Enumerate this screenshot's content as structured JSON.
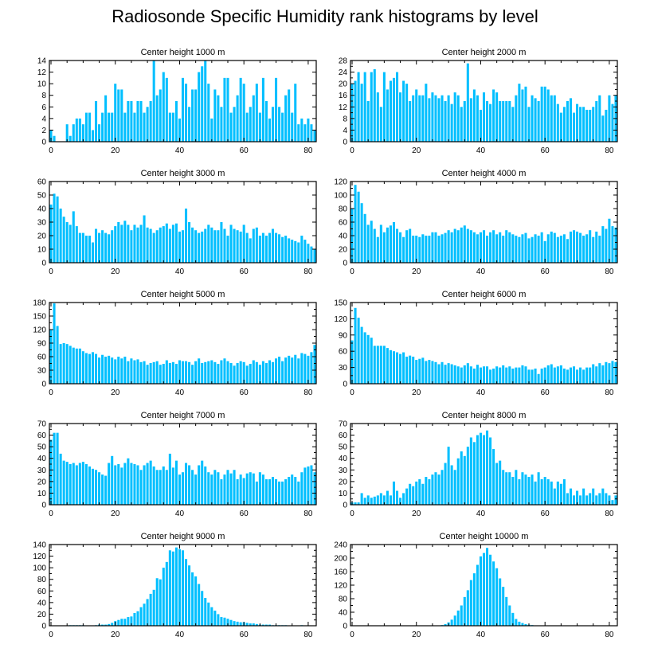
{
  "title": "Radiosonde Specific Humidity rank histograms by level",
  "bar_color": "#00bfff",
  "chart_data": [
    {
      "type": "bar",
      "title": "Center height 1000 m",
      "xlim": [
        -0.5,
        82.5
      ],
      "ylim": [
        0,
        14
      ],
      "yticks": [
        0,
        2,
        4,
        6,
        8,
        10,
        12,
        14
      ],
      "xticks": [
        0,
        20,
        40,
        60,
        80
      ],
      "values": [
        2,
        1,
        0,
        0,
        0,
        3,
        1,
        3,
        4,
        4,
        3,
        5,
        5,
        2,
        7,
        3,
        5,
        8,
        5,
        5,
        10,
        9,
        9,
        5,
        7,
        7,
        5,
        7,
        7,
        5,
        6,
        7,
        14,
        8,
        9,
        12,
        11,
        5,
        5,
        7,
        4,
        11,
        10,
        6,
        9,
        9,
        12,
        13,
        14,
        10,
        4,
        9,
        8,
        6,
        11,
        11,
        5,
        6,
        8,
        11,
        10,
        5,
        6,
        8,
        10,
        5,
        11,
        7,
        4,
        6,
        11,
        6,
        5,
        8,
        9,
        5,
        10,
        3,
        4,
        3,
        4,
        3,
        2
      ]
    },
    {
      "type": "bar",
      "title": "Center height 2000 m",
      "xlim": [
        -0.5,
        82.5
      ],
      "ylim": [
        0,
        28
      ],
      "yticks": [
        0,
        2,
        4,
        6,
        8,
        10,
        12,
        14,
        16,
        18,
        20,
        22,
        24,
        26,
        28
      ],
      "yticklabels": [
        0,
        4,
        8,
        12,
        16,
        20,
        24,
        28
      ],
      "xticks": [
        0,
        20,
        40,
        60,
        80
      ],
      "values": [
        20,
        21,
        24,
        20,
        24,
        14,
        24,
        25,
        17,
        12,
        24,
        18,
        21,
        22,
        24,
        17,
        21,
        20,
        14,
        16,
        18,
        16,
        16,
        20,
        15,
        17,
        16,
        15,
        16,
        14,
        16,
        13,
        17,
        16,
        12,
        14,
        27,
        15,
        18,
        16,
        11,
        17,
        14,
        13,
        18,
        17,
        14,
        14,
        14,
        14,
        12,
        16,
        20,
        18,
        19,
        12,
        16,
        15,
        14,
        19,
        19,
        18,
        16,
        16,
        13,
        10,
        12,
        14,
        15,
        10,
        13,
        12,
        12,
        11,
        11,
        12,
        14,
        16,
        9,
        11,
        16,
        13,
        16
      ]
    },
    {
      "type": "bar",
      "title": "Center height 3000 m",
      "xlim": [
        -0.5,
        82.5
      ],
      "ylim": [
        0,
        60
      ],
      "yticks": [
        0,
        10,
        20,
        30,
        40,
        50,
        60
      ],
      "xticks": [
        0,
        20,
        40,
        60,
        80
      ],
      "values": [
        43,
        51,
        49,
        40,
        34,
        30,
        28,
        38,
        27,
        22,
        22,
        20,
        20,
        15,
        25,
        22,
        24,
        22,
        21,
        24,
        27,
        30,
        28,
        31,
        28,
        24,
        28,
        26,
        28,
        35,
        26,
        25,
        22,
        24,
        26,
        27,
        29,
        25,
        28,
        29,
        23,
        24,
        40,
        30,
        26,
        24,
        22,
        23,
        25,
        28,
        26,
        24,
        24,
        30,
        25,
        20,
        28,
        25,
        24,
        23,
        28,
        22,
        18,
        25,
        26,
        20,
        22,
        20,
        22,
        25,
        22,
        21,
        19,
        20,
        18,
        17,
        16,
        15,
        20,
        17,
        14,
        12,
        10
      ]
    },
    {
      "type": "bar",
      "title": "Center height 4000 m",
      "xlim": [
        -0.5,
        82.5
      ],
      "ylim": [
        0,
        120
      ],
      "yticks": [
        0,
        10,
        20,
        30,
        40,
        50,
        60,
        70,
        80,
        90,
        100,
        110,
        120
      ],
      "yticklabels": [
        0,
        20,
        40,
        60,
        80,
        100,
        120
      ],
      "xticks": [
        0,
        20,
        40,
        60,
        80
      ],
      "values": [
        80,
        115,
        105,
        88,
        72,
        56,
        62,
        50,
        38,
        56,
        45,
        52,
        55,
        60,
        50,
        45,
        38,
        48,
        50,
        40,
        40,
        38,
        42,
        40,
        40,
        45,
        45,
        40,
        42,
        44,
        48,
        45,
        50,
        48,
        52,
        55,
        50,
        48,
        45,
        42,
        45,
        48,
        40,
        45,
        48,
        42,
        45,
        40,
        48,
        45,
        42,
        40,
        38,
        42,
        44,
        36,
        38,
        42,
        40,
        45,
        32,
        42,
        46,
        44,
        38,
        40,
        42,
        35,
        46,
        48,
        46,
        44,
        40,
        42,
        48,
        38,
        46,
        40,
        54,
        50,
        65,
        54,
        52
      ]
    },
    {
      "type": "bar",
      "title": "Center height 5000 m",
      "xlim": [
        -0.5,
        82.5
      ],
      "ylim": [
        0,
        180
      ],
      "yticks": [
        0,
        15,
        30,
        45,
        60,
        75,
        90,
        105,
        120,
        135,
        150,
        165,
        180
      ],
      "yticklabels": [
        0,
        30,
        60,
        90,
        120,
        150,
        180
      ],
      "xticks": [
        0,
        20,
        40,
        60,
        80
      ],
      "values": [
        120,
        178,
        128,
        88,
        90,
        88,
        84,
        80,
        78,
        78,
        72,
        68,
        66,
        70,
        66,
        58,
        64,
        60,
        62,
        58,
        54,
        60,
        56,
        60,
        50,
        56,
        52,
        54,
        48,
        50,
        42,
        46,
        48,
        50,
        42,
        44,
        52,
        46,
        48,
        44,
        52,
        50,
        50,
        48,
        42,
        50,
        56,
        46,
        48,
        50,
        52,
        48,
        44,
        52,
        56,
        50,
        46,
        40,
        46,
        50,
        48,
        40,
        44,
        52,
        48,
        42,
        50,
        46,
        52,
        48,
        56,
        60,
        50,
        58,
        62,
        58,
        64,
        56,
        68,
        66,
        62,
        70,
        86
      ]
    },
    {
      "type": "bar",
      "title": "Center height 6000 m",
      "xlim": [
        -0.5,
        82.5
      ],
      "ylim": [
        0,
        150
      ],
      "yticks": [
        0,
        15,
        30,
        45,
        60,
        75,
        90,
        105,
        120,
        135,
        150
      ],
      "yticklabels": [
        0,
        30,
        60,
        90,
        120,
        150
      ],
      "xticks": [
        0,
        20,
        40,
        60,
        80
      ],
      "values": [
        80,
        140,
        122,
        105,
        95,
        90,
        85,
        70,
        70,
        70,
        70,
        66,
        62,
        60,
        58,
        55,
        58,
        50,
        52,
        50,
        44,
        46,
        48,
        42,
        44,
        42,
        40,
        36,
        40,
        35,
        38,
        36,
        34,
        32,
        30,
        34,
        38,
        32,
        28,
        35,
        30,
        32,
        32,
        26,
        28,
        32,
        30,
        34,
        30,
        32,
        28,
        30,
        30,
        34,
        32,
        26,
        26,
        28,
        18,
        28,
        30,
        34,
        36,
        30,
        32,
        34,
        28,
        26,
        30,
        32,
        26,
        30,
        26,
        30,
        30,
        36,
        32,
        38,
        34,
        40,
        38,
        42,
        40
      ]
    },
    {
      "type": "bar",
      "title": "Center height 7000 m",
      "xlim": [
        -0.5,
        82.5
      ],
      "ylim": [
        0,
        70
      ],
      "yticks": [
        0,
        5,
        10,
        15,
        20,
        25,
        30,
        35,
        40,
        45,
        50,
        55,
        60,
        65,
        70
      ],
      "yticklabels": [
        0,
        10,
        20,
        30,
        40,
        50,
        60,
        70
      ],
      "xticks": [
        0,
        20,
        40,
        60,
        80
      ],
      "values": [
        56,
        62,
        62,
        44,
        38,
        37,
        35,
        36,
        34,
        36,
        37,
        35,
        33,
        31,
        30,
        28,
        26,
        25,
        36,
        42,
        34,
        35,
        32,
        36,
        40,
        36,
        35,
        34,
        30,
        34,
        36,
        38,
        33,
        30,
        30,
        33,
        30,
        44,
        32,
        38,
        26,
        28,
        36,
        34,
        30,
        26,
        34,
        38,
        33,
        28,
        26,
        30,
        28,
        22,
        26,
        30,
        27,
        30,
        22,
        26,
        23,
        27,
        28,
        27,
        20,
        28,
        26,
        22,
        22,
        24,
        22,
        20,
        20,
        22,
        24,
        26,
        24,
        20,
        28,
        32,
        33,
        34,
        28
      ]
    },
    {
      "type": "bar",
      "title": "Center height 8000 m",
      "xlim": [
        -0.5,
        82.5
      ],
      "ylim": [
        0,
        70
      ],
      "yticks": [
        0,
        5,
        10,
        15,
        20,
        25,
        30,
        35,
        40,
        45,
        50,
        55,
        60,
        65,
        70
      ],
      "yticklabels": [
        0,
        10,
        20,
        30,
        40,
        50,
        60,
        70
      ],
      "xticks": [
        0,
        20,
        40,
        60,
        80
      ],
      "values": [
        2,
        2,
        2,
        10,
        6,
        8,
        6,
        7,
        8,
        10,
        8,
        12,
        8,
        20,
        12,
        6,
        10,
        14,
        18,
        16,
        20,
        22,
        18,
        24,
        22,
        26,
        28,
        26,
        30,
        36,
        50,
        34,
        30,
        40,
        46,
        42,
        50,
        58,
        54,
        60,
        62,
        60,
        64,
        58,
        48,
        36,
        38,
        30,
        28,
        28,
        24,
        30,
        22,
        28,
        26,
        24,
        26,
        20,
        28,
        22,
        24,
        22,
        20,
        14,
        20,
        18,
        22,
        10,
        14,
        8,
        12,
        8,
        14,
        8,
        10,
        14,
        8,
        10,
        14,
        10,
        8,
        4,
        8
      ]
    },
    {
      "type": "bar",
      "title": "Center height 9000 m",
      "xlim": [
        -0.5,
        82.5
      ],
      "ylim": [
        0,
        140
      ],
      "yticks": [
        0,
        10,
        20,
        30,
        40,
        50,
        60,
        70,
        80,
        90,
        100,
        110,
        120,
        130,
        140
      ],
      "yticklabels": [
        0,
        20,
        40,
        60,
        80,
        100,
        120,
        140
      ],
      "xticks": [
        0,
        20,
        40,
        60,
        80
      ],
      "values": [
        0,
        0,
        0,
        0,
        0,
        0,
        1,
        1,
        1,
        1,
        1,
        0,
        0,
        0,
        1,
        2,
        2,
        2,
        3,
        5,
        8,
        10,
        12,
        12,
        15,
        16,
        22,
        25,
        32,
        38,
        46,
        55,
        62,
        82,
        80,
        100,
        110,
        130,
        128,
        135,
        132,
        130,
        115,
        104,
        92,
        85,
        72,
        60,
        48,
        40,
        32,
        26,
        20,
        15,
        14,
        12,
        10,
        8,
        7,
        6,
        6,
        5,
        4,
        4,
        3,
        2,
        2,
        2,
        2,
        1,
        1,
        1,
        1,
        1,
        0,
        0,
        0,
        0,
        1,
        0,
        0,
        0,
        0
      ]
    },
    {
      "type": "bar",
      "title": "Center height 10000 m",
      "xlim": [
        -0.5,
        82.5
      ],
      "ylim": [
        0,
        240
      ],
      "yticks": [
        0,
        20,
        40,
        60,
        80,
        100,
        120,
        140,
        160,
        180,
        200,
        220,
        240
      ],
      "yticklabels": [
        0,
        40,
        80,
        120,
        160,
        200,
        240
      ],
      "xticks": [
        0,
        20,
        40,
        60,
        80
      ],
      "values": [
        0,
        0,
        0,
        0,
        0,
        0,
        0,
        0,
        0,
        0,
        0,
        0,
        0,
        0,
        0,
        0,
        0,
        0,
        0,
        0,
        0,
        0,
        0,
        0,
        0,
        0,
        0,
        0,
        2,
        5,
        10,
        18,
        30,
        45,
        60,
        85,
        105,
        135,
        155,
        180,
        205,
        215,
        230,
        210,
        190,
        170,
        140,
        115,
        85,
        60,
        38,
        20,
        12,
        8,
        5,
        3,
        2,
        1,
        1,
        0,
        0,
        0,
        0,
        0,
        0,
        0,
        0,
        0,
        0,
        0,
        0,
        0,
        0,
        0,
        0,
        0,
        0,
        0,
        0,
        0,
        0,
        0,
        0
      ]
    }
  ]
}
